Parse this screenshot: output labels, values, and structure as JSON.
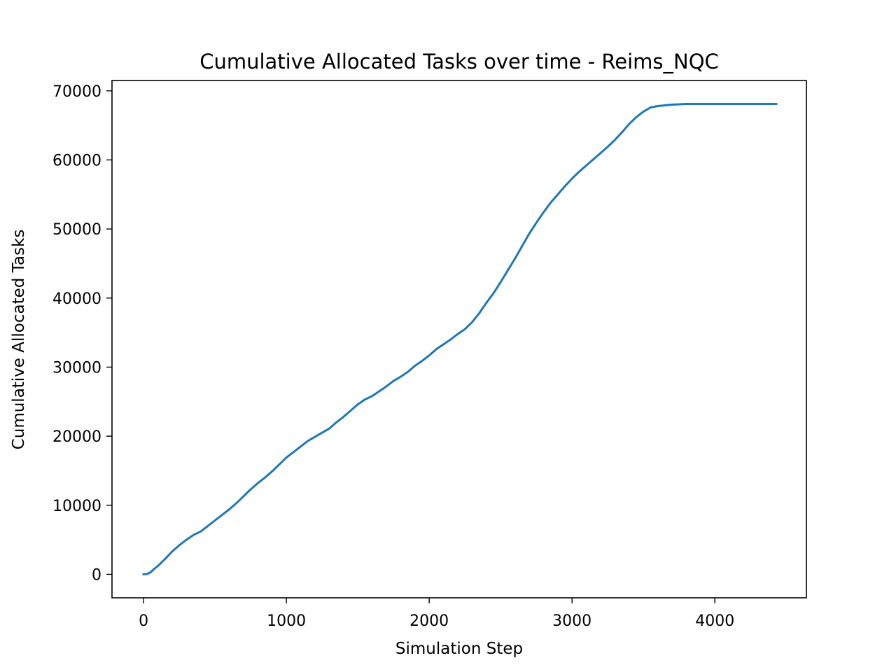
{
  "chart_data": {
    "type": "line",
    "title": "Cumulative Allocated Tasks over time - Reims_NQC",
    "xlabel": "Simulation Step",
    "ylabel": "Cumulative Allocated Tasks",
    "xlim": [
      -221,
      4641
    ],
    "ylim": [
      -3400,
      71500
    ],
    "xticks": [
      0,
      1000,
      2000,
      3000,
      4000
    ],
    "yticks": [
      0,
      10000,
      20000,
      30000,
      40000,
      50000,
      60000,
      70000
    ],
    "xtick_labels": [
      "0",
      "1000",
      "2000",
      "3000",
      "4000"
    ],
    "ytick_labels": [
      "0",
      "10000",
      "20000",
      "30000",
      "40000",
      "50000",
      "60000",
      "70000"
    ],
    "grid": false,
    "legend": false,
    "series": [
      {
        "color": "#1f77b4",
        "x": [
          0,
          25,
          50,
          75,
          100,
          150,
          200,
          250,
          300,
          350,
          400,
          450,
          500,
          550,
          600,
          650,
          700,
          750,
          800,
          850,
          900,
          950,
          1000,
          1050,
          1100,
          1150,
          1200,
          1250,
          1300,
          1350,
          1400,
          1450,
          1500,
          1550,
          1600,
          1650,
          1700,
          1750,
          1800,
          1850,
          1900,
          1950,
          2000,
          2050,
          2100,
          2150,
          2200,
          2250,
          2300,
          2350,
          2400,
          2450,
          2500,
          2550,
          2600,
          2650,
          2700,
          2750,
          2800,
          2850,
          2900,
          2950,
          3000,
          3050,
          3100,
          3150,
          3200,
          3250,
          3300,
          3350,
          3400,
          3450,
          3500,
          3550,
          3600,
          3650,
          3700,
          3750,
          3800,
          3850,
          4000,
          4200,
          4430
        ],
        "y": [
          0,
          50,
          300,
          800,
          1200,
          2200,
          3300,
          4200,
          5000,
          5700,
          6200,
          7000,
          7800,
          8600,
          9400,
          10300,
          11300,
          12300,
          13200,
          14000,
          14900,
          15900,
          16900,
          17700,
          18500,
          19300,
          19900,
          20500,
          21100,
          22000,
          22800,
          23700,
          24600,
          25300,
          25800,
          26500,
          27200,
          28000,
          28600,
          29300,
          30200,
          30900,
          31700,
          32600,
          33300,
          34000,
          34800,
          35500,
          36500,
          37800,
          39300,
          40700,
          42300,
          44000,
          45700,
          47500,
          49300,
          50900,
          52400,
          53800,
          55000,
          56200,
          57300,
          58300,
          59200,
          60100,
          61000,
          61900,
          62900,
          64000,
          65200,
          66200,
          67000,
          67600,
          67800,
          67900,
          68000,
          68050,
          68100,
          68100,
          68100,
          68100,
          68100
        ]
      }
    ]
  }
}
